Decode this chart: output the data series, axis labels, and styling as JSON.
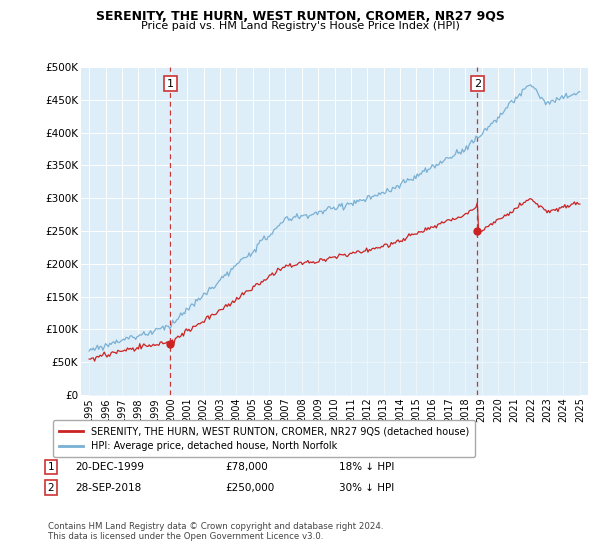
{
  "title": "SERENITY, THE HURN, WEST RUNTON, CROMER, NR27 9QS",
  "subtitle": "Price paid vs. HM Land Registry's House Price Index (HPI)",
  "ylabel_ticks": [
    "£0",
    "£50K",
    "£100K",
    "£150K",
    "£200K",
    "£250K",
    "£300K",
    "£350K",
    "£400K",
    "£450K",
    "£500K"
  ],
  "ytick_values": [
    0,
    50000,
    100000,
    150000,
    200000,
    250000,
    300000,
    350000,
    400000,
    450000,
    500000
  ],
  "ylim": [
    0,
    500000
  ],
  "xlim_start": 1994.5,
  "xlim_end": 2025.5,
  "hpi_color": "#7ab0d4",
  "hpi_fill_color": "#ddeef8",
  "price_color": "#cc2222",
  "dashed_line_color": "#cc3333",
  "sale1_x": 1999.97,
  "sale1_y": 78000,
  "sale2_x": 2018.74,
  "sale2_y": 250000,
  "legend_label1": "SERENITY, THE HURN, WEST RUNTON, CROMER, NR27 9QS (detached house)",
  "legend_label2": "HPI: Average price, detached house, North Norfolk",
  "note1_date": "20-DEC-1999",
  "note1_price": "£78,000",
  "note1_hpi": "18% ↓ HPI",
  "note2_date": "28-SEP-2018",
  "note2_price": "£250,000",
  "note2_hpi": "30% ↓ HPI",
  "footer": "Contains HM Land Registry data © Crown copyright and database right 2024.\nThis data is licensed under the Open Government Licence v3.0.",
  "background_color": "#ffffff",
  "plot_bg_color": "#ddeef8",
  "grid_color": "#ffffff"
}
